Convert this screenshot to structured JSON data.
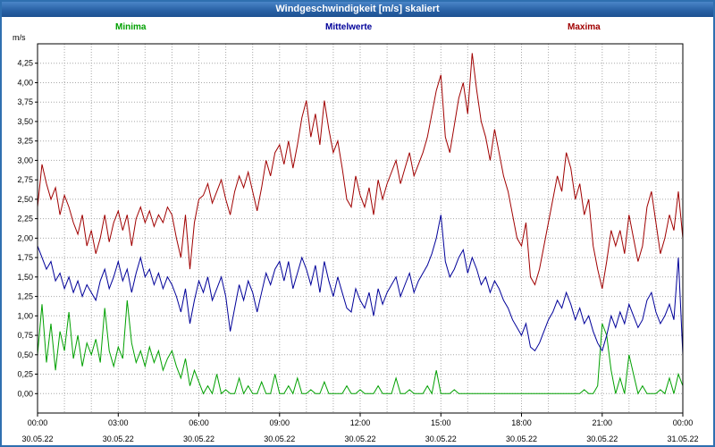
{
  "window": {
    "title": "Windgeschwindigkeit [m/s] skaliert"
  },
  "axes": {
    "y_unit": "m/s"
  },
  "chart_data": {
    "type": "line",
    "title": "Windgeschwindigkeit [m/s] skaliert",
    "x_start": "00:00",
    "x_end": "24:00",
    "x_interval_minutes": 10,
    "x_tick_hours": [
      0,
      3,
      6,
      9,
      12,
      15,
      18,
      21,
      24
    ],
    "x_tick_labels": [
      "00:00",
      "03:00",
      "06:00",
      "09:00",
      "12:00",
      "15:00",
      "18:00",
      "21:00",
      "00:00"
    ],
    "x_tick_dates": [
      "30.05.22",
      "30.05.22",
      "30.05.22",
      "30.05.22",
      "30.05.22",
      "30.05.22",
      "30.05.22",
      "30.05.22",
      "31.05.22"
    ],
    "y_tick_values": [
      0,
      0.25,
      0.5,
      0.75,
      1.0,
      1.25,
      1.5,
      1.75,
      2.0,
      2.25,
      2.5,
      2.75,
      3.0,
      3.25,
      3.5,
      3.75,
      4.0,
      4.25
    ],
    "y_tick_labels": [
      "0,00",
      "0,25",
      "0,50",
      "0,75",
      "1,00",
      "1,25",
      "1,50",
      "1,75",
      "2,00",
      "2,25",
      "2,50",
      "2,75",
      "3,00",
      "3,25",
      "3,50",
      "3,75",
      "4,00",
      "4,25"
    ],
    "ylim": [
      -0.25,
      4.5
    ],
    "ylabel": "m/s",
    "grid": "dotted",
    "legend_position": "top",
    "series": [
      {
        "name": "Minima",
        "color": "#00a000",
        "values": [
          0.5,
          1.15,
          0.4,
          0.9,
          0.3,
          0.8,
          0.55,
          1.05,
          0.45,
          0.75,
          0.35,
          0.65,
          0.5,
          0.7,
          0.4,
          1.1,
          0.55,
          0.35,
          0.6,
          0.45,
          1.2,
          0.65,
          0.4,
          0.55,
          0.35,
          0.6,
          0.4,
          0.55,
          0.3,
          0.45,
          0.55,
          0.35,
          0.2,
          0.45,
          0.1,
          0.3,
          0.15,
          0.0,
          0.1,
          0.0,
          0.25,
          0.0,
          0.05,
          0.0,
          0.0,
          0.2,
          0.0,
          0.1,
          0.0,
          0.0,
          0.15,
          0.0,
          0.0,
          0.25,
          0.0,
          0.0,
          0.1,
          0.0,
          0.2,
          0.0,
          0.0,
          0.05,
          0.0,
          0.0,
          0.15,
          0.0,
          0.0,
          0.0,
          0.0,
          0.1,
          0.0,
          0.0,
          0.05,
          0.0,
          0.0,
          0.0,
          0.1,
          0.0,
          0.0,
          0.0,
          0.2,
          0.0,
          0.0,
          0.05,
          0.0,
          0.0,
          0.0,
          0.1,
          0.0,
          0.3,
          0.0,
          0.0,
          0.0,
          0.05,
          0.0,
          0.0,
          0.0,
          0.0,
          0.0,
          0.0,
          0.0,
          0.0,
          0.0,
          0.0,
          0.0,
          0.0,
          0.0,
          0.0,
          0.0,
          0.0,
          0.0,
          0.0,
          0.0,
          0.0,
          0.0,
          0.0,
          0.0,
          0.0,
          0.0,
          0.0,
          0.0,
          0.0,
          0.05,
          0.0,
          0.0,
          0.1,
          0.9,
          0.75,
          0.3,
          0.0,
          0.2,
          0.0,
          0.5,
          0.25,
          0.0,
          0.1,
          0.0,
          0.0,
          0.0,
          0.05,
          0.0,
          0.2,
          0.0,
          0.25,
          0.1
        ]
      },
      {
        "name": "Mittelwerte",
        "color": "#000099",
        "values": [
          1.9,
          1.75,
          1.6,
          1.7,
          1.45,
          1.55,
          1.35,
          1.5,
          1.3,
          1.45,
          1.25,
          1.4,
          1.3,
          1.2,
          1.45,
          1.6,
          1.35,
          1.5,
          1.7,
          1.45,
          1.6,
          1.3,
          1.55,
          1.75,
          1.5,
          1.6,
          1.4,
          1.55,
          1.35,
          1.5,
          1.4,
          1.25,
          1.05,
          1.35,
          0.9,
          1.2,
          1.45,
          1.3,
          1.5,
          1.2,
          1.35,
          1.5,
          1.25,
          0.8,
          1.1,
          1.4,
          1.2,
          1.45,
          1.3,
          1.05,
          1.3,
          1.55,
          1.4,
          1.6,
          1.7,
          1.45,
          1.7,
          1.35,
          1.55,
          1.75,
          1.6,
          1.4,
          1.65,
          1.3,
          1.7,
          1.45,
          1.25,
          1.5,
          1.3,
          1.1,
          1.05,
          1.35,
          1.2,
          1.1,
          1.3,
          1.0,
          1.35,
          1.15,
          1.3,
          1.4,
          1.5,
          1.25,
          1.4,
          1.55,
          1.3,
          1.45,
          1.55,
          1.65,
          1.8,
          2.0,
          2.3,
          1.7,
          1.5,
          1.6,
          1.75,
          1.85,
          1.55,
          1.75,
          1.6,
          1.4,
          1.5,
          1.3,
          1.45,
          1.35,
          1.2,
          1.1,
          0.95,
          0.85,
          0.75,
          0.9,
          0.6,
          0.55,
          0.65,
          0.8,
          0.95,
          1.05,
          1.2,
          1.1,
          1.3,
          1.15,
          0.95,
          1.1,
          0.9,
          1.0,
          0.8,
          0.65,
          0.55,
          0.75,
          1.0,
          0.85,
          1.05,
          0.9,
          1.15,
          1.0,
          0.85,
          0.95,
          1.2,
          1.3,
          1.05,
          0.9,
          1.0,
          1.15,
          0.95,
          1.75,
          0.5
        ]
      },
      {
        "name": "Maxima",
        "color": "#a00000",
        "values": [
          2.4,
          2.95,
          2.7,
          2.5,
          2.65,
          2.3,
          2.55,
          2.4,
          2.2,
          2.05,
          2.3,
          1.9,
          2.1,
          1.8,
          2.0,
          2.3,
          1.95,
          2.2,
          2.35,
          2.1,
          2.3,
          1.9,
          2.25,
          2.4,
          2.2,
          2.35,
          2.15,
          2.3,
          2.2,
          2.4,
          2.3,
          2.0,
          1.75,
          2.3,
          1.6,
          2.2,
          2.5,
          2.55,
          2.7,
          2.45,
          2.6,
          2.75,
          2.5,
          2.3,
          2.6,
          2.8,
          2.65,
          2.85,
          2.6,
          2.35,
          2.65,
          3.0,
          2.8,
          3.1,
          3.2,
          2.95,
          3.25,
          2.9,
          3.2,
          3.55,
          3.77,
          3.3,
          3.6,
          3.2,
          3.77,
          3.4,
          3.1,
          3.25,
          2.9,
          2.5,
          2.4,
          2.8,
          2.55,
          2.4,
          2.65,
          2.3,
          2.75,
          2.5,
          2.7,
          2.85,
          3.0,
          2.7,
          2.9,
          3.1,
          2.8,
          2.95,
          3.1,
          3.3,
          3.6,
          3.9,
          4.1,
          3.3,
          3.1,
          3.45,
          3.8,
          4.0,
          3.6,
          4.38,
          3.9,
          3.5,
          3.3,
          3.0,
          3.4,
          3.1,
          2.8,
          2.6,
          2.3,
          2.0,
          1.9,
          2.2,
          1.5,
          1.4,
          1.6,
          1.9,
          2.2,
          2.5,
          2.8,
          2.6,
          3.1,
          2.9,
          2.5,
          2.7,
          2.3,
          2.5,
          1.9,
          1.6,
          1.35,
          1.7,
          2.1,
          1.9,
          2.1,
          1.8,
          2.3,
          2.0,
          1.7,
          1.9,
          2.4,
          2.6,
          2.2,
          1.8,
          2.0,
          2.3,
          2.1,
          2.6,
          2.0
        ]
      }
    ]
  }
}
